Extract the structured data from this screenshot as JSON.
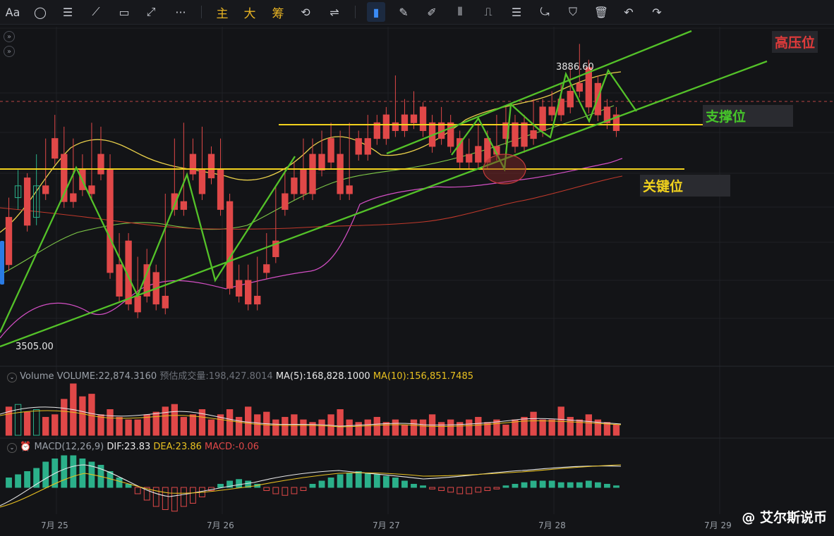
{
  "toolbar": {
    "items": [
      "Aa",
      "◯",
      "☰",
      "⟋",
      "▭",
      "⤢",
      "···",
      "主",
      "大",
      "筹",
      "⟲",
      "⇌",
      "▮",
      "✎",
      "✐",
      "⫴",
      "⎍",
      "☰",
      "⤿",
      "⛉",
      "🗑",
      "↶",
      "↷"
    ]
  },
  "chart_data": {
    "type": "candlestick",
    "price_labels": {
      "high": "3886.60",
      "low": "3505.00"
    },
    "x_ticks": [
      "7月 25",
      "7月 26",
      "7月 27",
      "7月 28",
      "7月 29"
    ],
    "annotations": [
      {
        "text": "高压位",
        "color": "#e23b3b"
      },
      {
        "text": "支撑位",
        "color": "#46c72a"
      },
      {
        "text": "关键位",
        "color": "#f2d21d"
      }
    ],
    "horizontal_levels": [
      {
        "name": "key-level",
        "color": "#f2d21d"
      },
      {
        "name": "support-level",
        "color": "#f2d21d"
      }
    ],
    "candles": [
      [
        3660,
        3685,
        3610,
        3600
      ],
      [
        3685,
        3720,
        3670,
        3700
      ],
      [
        3710,
        3716,
        3660,
        3650
      ],
      [
        3660,
        3740,
        3650,
        3700
      ],
      [
        3700,
        3760,
        3695,
        3690
      ],
      [
        3760,
        3790,
        3740,
        3735
      ],
      [
        3740,
        3775,
        3690,
        3680
      ],
      [
        3690,
        3760,
        3690,
        3680
      ],
      [
        3720,
        3740,
        3700,
        3695
      ],
      [
        3700,
        3780,
        3700,
        3690
      ],
      [
        3740,
        3775,
        3720,
        3715
      ],
      [
        3720,
        3740,
        3600,
        3590
      ],
      [
        3600,
        3640,
        3590,
        3560
      ],
      [
        3630,
        3640,
        3560,
        3550
      ],
      [
        3560,
        3610,
        3550,
        3540
      ],
      [
        3600,
        3620,
        3570,
        3560
      ],
      [
        3590,
        3600,
        3560,
        3550
      ],
      [
        3560,
        3690,
        3550,
        3545
      ],
      [
        3690,
        3760,
        3680,
        3670
      ],
      [
        3680,
        3780,
        3680,
        3670
      ],
      [
        3740,
        3760,
        3720,
        3715
      ],
      [
        3720,
        3775,
        3700,
        3690
      ],
      [
        3740,
        3750,
        3720,
        3710
      ],
      [
        3720,
        3760,
        3680,
        3670
      ],
      [
        3680,
        3690,
        3580,
        3570
      ],
      [
        3580,
        3600,
        3570,
        3560
      ],
      [
        3580,
        3600,
        3560,
        3550
      ],
      [
        3560,
        3610,
        3560,
        3550
      ],
      [
        3600,
        3640,
        3600,
        3590
      ],
      [
        3630,
        3700,
        3620,
        3610
      ],
      [
        3690,
        3720,
        3680,
        3670
      ],
      [
        3710,
        3730,
        3700,
        3690
      ],
      [
        3720,
        3760,
        3700,
        3690
      ],
      [
        3740,
        3760,
        3700,
        3690
      ],
      [
        3740,
        3770,
        3730,
        3720
      ],
      [
        3760,
        3780,
        3740,
        3730
      ],
      [
        3740,
        3770,
        3700,
        3690
      ],
      [
        3700,
        3780,
        3700,
        3690
      ],
      [
        3760,
        3770,
        3750,
        3740
      ],
      [
        3760,
        3790,
        3750,
        3740
      ],
      [
        3780,
        3790,
        3770,
        3760
      ],
      [
        3790,
        3800,
        3770,
        3760
      ],
      [
        3780,
        3840,
        3780,
        3770
      ],
      [
        3790,
        3810,
        3780,
        3770
      ],
      [
        3790,
        3820,
        3790,
        3780
      ],
      [
        3800,
        3800,
        3780,
        3770
      ],
      [
        3780,
        3790,
        3760,
        3750
      ],
      [
        3780,
        3800,
        3770,
        3760
      ],
      [
        3780,
        3790,
        3760,
        3750
      ],
      [
        3760,
        3770,
        3740,
        3730
      ],
      [
        3740,
        3760,
        3740,
        3730
      ],
      [
        3750,
        3780,
        3740,
        3730
      ],
      [
        3760,
        3770,
        3740,
        3730
      ],
      [
        3750,
        3790,
        3750,
        3740
      ],
      [
        3780,
        3800,
        3770,
        3760
      ],
      [
        3780,
        3790,
        3760,
        3750
      ],
      [
        3780,
        3790,
        3760,
        3750
      ],
      [
        3770,
        3810,
        3770,
        3760
      ],
      [
        3800,
        3810,
        3780,
        3770
      ],
      [
        3800,
        3820,
        3800,
        3790
      ],
      [
        3810,
        3830,
        3800,
        3790
      ],
      [
        3820,
        3850,
        3810,
        3800
      ],
      [
        3830,
        3880,
        3830,
        3820
      ],
      [
        3850,
        3860,
        3810,
        3800
      ],
      [
        3830,
        3840,
        3800,
        3790
      ],
      [
        3800,
        3810,
        3790,
        3780
      ],
      [
        3790,
        3800,
        3780,
        3770
      ]
    ]
  },
  "volume_panel": {
    "label": "Volume",
    "volume": "VOLUME:22,874.3160",
    "est": "预估成交量:198,427.8014",
    "ma5": "MA(5):168,828.1000",
    "ma10": "MA(10):156,851.7485"
  },
  "macd_panel": {
    "label": "MACD(12,26,9)",
    "dif": "DIF:23.83",
    "dea": "DEA:23.86",
    "macd": "MACD:-0.06"
  },
  "watermark": "@ 艾尔斯说币",
  "colors": {
    "up": "#2bb08a",
    "down": "#e04848",
    "channel": "#54c229",
    "key": "#f2d21d"
  }
}
